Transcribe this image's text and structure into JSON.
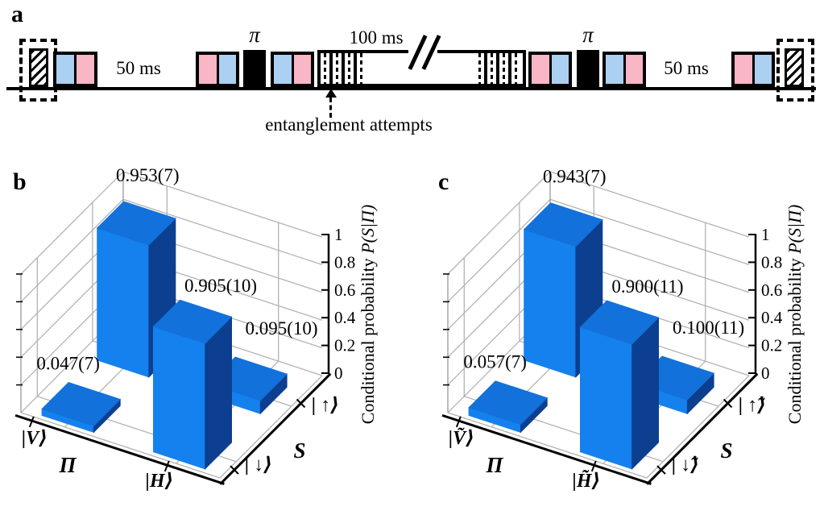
{
  "figure": {
    "panel_a_label": "a",
    "panel_b_label": "b",
    "panel_c_label": "c"
  },
  "pulse_sequence": {
    "wait_label_1": "50 ms",
    "pi_label_1": "π",
    "long_wait_label": "100 ms",
    "pi_label_2": "π",
    "wait_label_2": "50 ms",
    "annotation": "entanglement attempts",
    "colors": {
      "blue_pulse": "#abd0f2",
      "pink_pulse": "#f9b6c6",
      "pi_pulse": "#000000"
    }
  },
  "chart_data": [
    {
      "type": "bar",
      "panel": "b",
      "projection": "3d",
      "xlabel": "Π",
      "ylabel": "S",
      "zlabel": "Conditional probability ",
      "zlabel_math": "P(S|Π)",
      "x_categories": [
        "|V⟩",
        "|H⟩"
      ],
      "y_categories": [
        "| ↓⟩",
        "| ↑⟩"
      ],
      "zticks": [
        "0",
        "0.2",
        "0.4",
        "0.6",
        "0.8",
        "1"
      ],
      "zlim": [
        0,
        1
      ],
      "grid": true,
      "bars": [
        {
          "x": "|V⟩",
          "y": "| ↓⟩",
          "value": 0.047,
          "label": "0.047(7)"
        },
        {
          "x": "|V⟩",
          "y": "| ↑⟩",
          "value": 0.953,
          "label": "0.953(7)"
        },
        {
          "x": "|H⟩",
          "y": "| ↓⟩",
          "value": 0.905,
          "label": "0.905(10)"
        },
        {
          "x": "|H⟩",
          "y": "| ↑⟩",
          "value": 0.095,
          "label": "0.095(10)"
        }
      ]
    },
    {
      "type": "bar",
      "panel": "c",
      "projection": "3d",
      "xlabel": "Π",
      "ylabel": "S",
      "zlabel": "Conditional probability ",
      "zlabel_math": "P(S|Π)",
      "x_categories": [
        "|Ṽ⟩",
        "|H̃⟩"
      ],
      "y_categories": [
        "| ↓̃⟩",
        "| ↑̃⟩"
      ],
      "zticks": [
        "0",
        "0.2",
        "0.4",
        "0.6",
        "0.8",
        "1"
      ],
      "zlim": [
        0,
        1
      ],
      "grid": true,
      "bars": [
        {
          "x": "|Ṽ⟩",
          "y": "| ↓̃⟩",
          "value": 0.057,
          "label": "0.057(7)"
        },
        {
          "x": "|Ṽ⟩",
          "y": "| ↑̃⟩",
          "value": 0.943,
          "label": "0.943(7)"
        },
        {
          "x": "|H̃⟩",
          "y": "| ↓̃⟩",
          "value": 0.9,
          "label": "0.900(11)"
        },
        {
          "x": "|H̃⟩",
          "y": "| ↑̃⟩",
          "value": 0.1,
          "label": "0.100(11)"
        }
      ]
    }
  ],
  "colors": {
    "bar_front": "#1581ee",
    "bar_top": "#1271da",
    "bar_side": "#0c3f90",
    "grid": "#b3b3b3",
    "frame": "#999999",
    "axis": "#000000"
  }
}
